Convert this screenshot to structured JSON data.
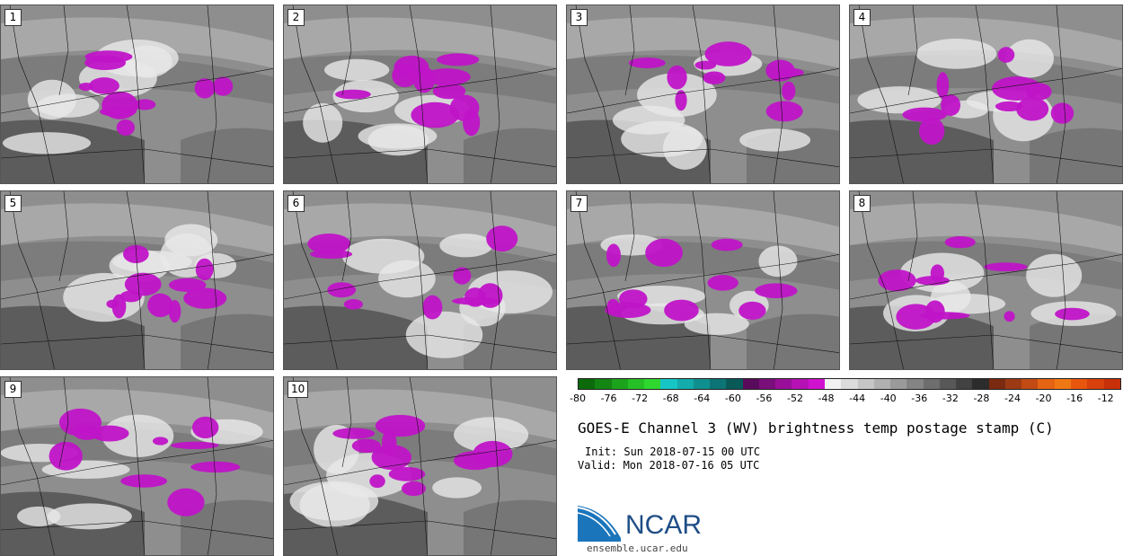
{
  "panels": [
    {
      "label": "1"
    },
    {
      "label": "2"
    },
    {
      "label": "3"
    },
    {
      "label": "4"
    },
    {
      "label": "5"
    },
    {
      "label": "6"
    },
    {
      "label": "7"
    },
    {
      "label": "8"
    },
    {
      "label": "9"
    },
    {
      "label": "10"
    }
  ],
  "colorbar": {
    "colors": [
      "#0b6b0b",
      "#138513",
      "#1ca31c",
      "#25c025",
      "#2fd82f",
      "#17c5c5",
      "#13abab",
      "#108f8f",
      "#0c7474",
      "#095959",
      "#5a0a5a",
      "#7a0e7a",
      "#990f99",
      "#b511b5",
      "#d012d0",
      "#f2f2f2",
      "#dcdcdc",
      "#c6c6c6",
      "#b0b0b0",
      "#9a9a9a",
      "#848484",
      "#6e6e6e",
      "#585858",
      "#424242",
      "#2c2c2c",
      "#7a2a10",
      "#9c3a14",
      "#c24a14",
      "#e46414",
      "#f07814",
      "#e8560e",
      "#d8400c",
      "#c8300a"
    ],
    "tick_labels": [
      "-80",
      "-76",
      "-72",
      "-68",
      "-64",
      "-60",
      "-56",
      "-52",
      "-48",
      "-44",
      "-40",
      "-36",
      "-32",
      "-28",
      "-24",
      "-20",
      "-16",
      "-12"
    ],
    "range": [
      -80,
      -10
    ]
  },
  "title": "GOES-E Channel 3 (WV) brightness temp postage stamp (C)",
  "init": "Init: Sun 2018-07-15 00 UTC",
  "valid": "Valid: Mon 2018-07-16 05 UTC",
  "logo": {
    "text": "NCAR",
    "url": "ensemble.ucar.edu"
  }
}
